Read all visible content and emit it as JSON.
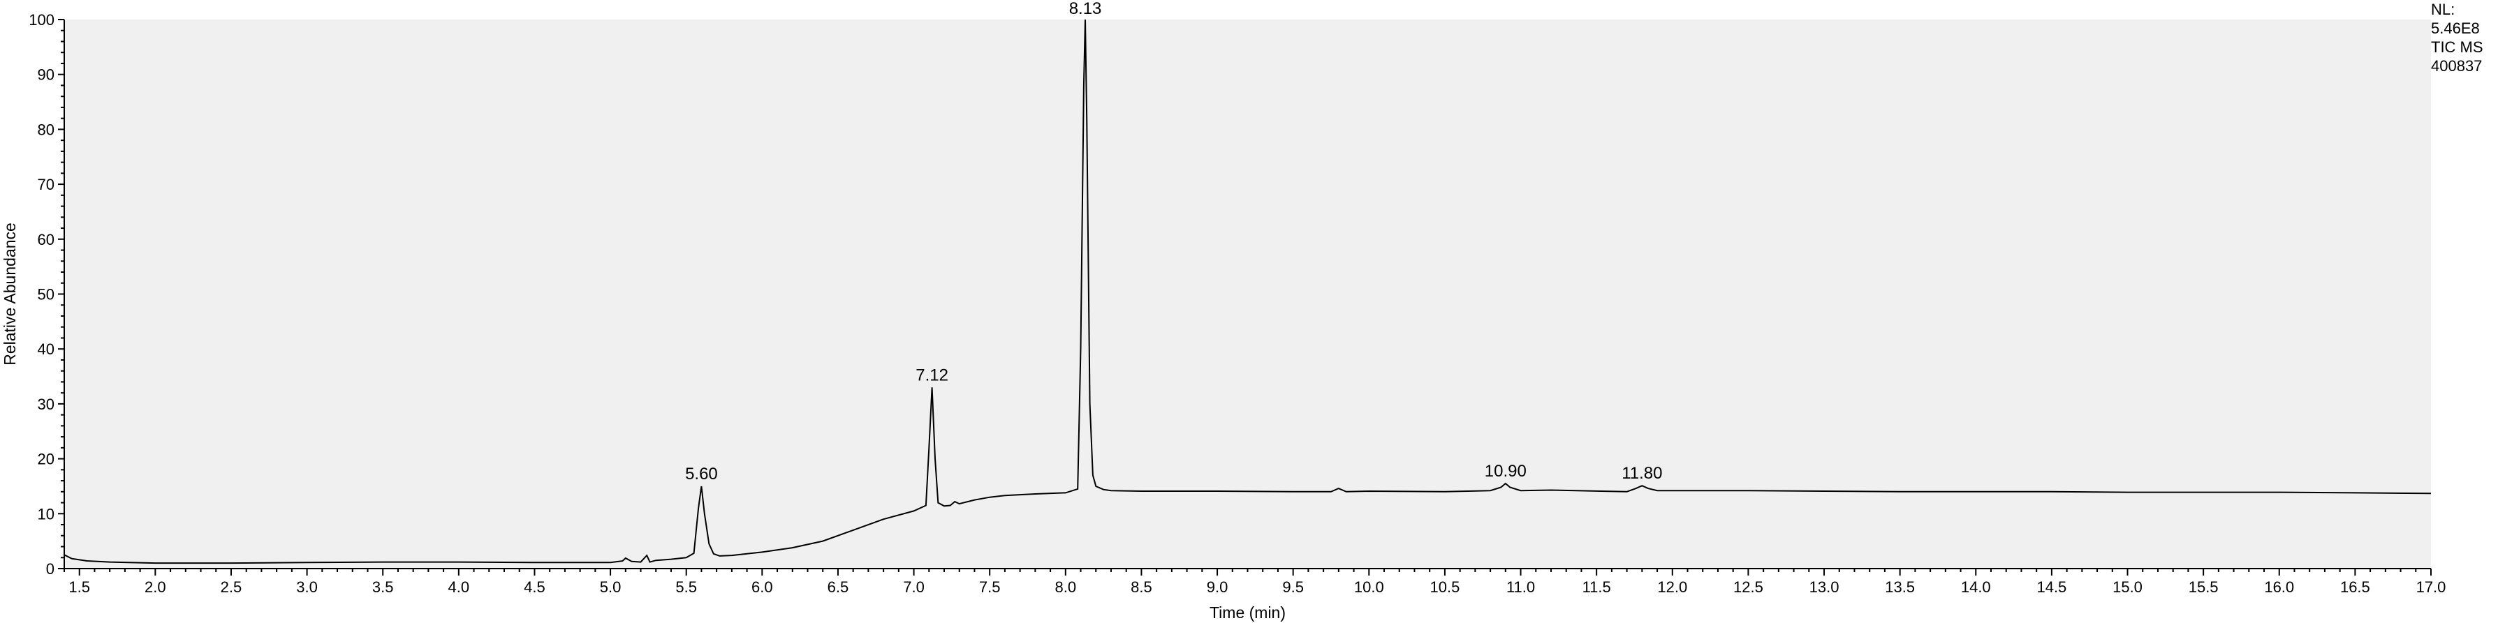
{
  "chart_data": {
    "type": "line",
    "xlabel": "Time (min)",
    "ylabel": "Relative Abundance",
    "xlim": [
      1.4,
      17.0
    ],
    "ylim": [
      0,
      100
    ],
    "x_ticks": [
      "1.5",
      "2.0",
      "2.5",
      "3.0",
      "3.5",
      "4.0",
      "4.5",
      "5.0",
      "5.5",
      "6.0",
      "6.5",
      "7.0",
      "7.5",
      "8.0",
      "8.5",
      "9.0",
      "9.5",
      "10.0",
      "10.5",
      "11.0",
      "11.5",
      "12.0",
      "12.5",
      "13.0",
      "13.5",
      "14.0",
      "14.5",
      "15.0",
      "15.5",
      "16.0",
      "16.5",
      "17.0"
    ],
    "y_ticks": [
      "0",
      "10",
      "20",
      "30",
      "40",
      "50",
      "60",
      "70",
      "80",
      "90",
      "100"
    ],
    "grid": false,
    "plot_background": "#f0f0f0",
    "line_color": "#000000",
    "series": [
      {
        "x": [
          1.4,
          1.45,
          1.55,
          1.7,
          2.0,
          2.5,
          3.0,
          3.5,
          4.0,
          4.5,
          5.0,
          5.08,
          5.1,
          5.14,
          5.2,
          5.24,
          5.26,
          5.3,
          5.4,
          5.5,
          5.55,
          5.58,
          5.6,
          5.62,
          5.65,
          5.68,
          5.72,
          5.8,
          6.0,
          6.2,
          6.4,
          6.6,
          6.8,
          7.0,
          7.08,
          7.1,
          7.12,
          7.14,
          7.16,
          7.2,
          7.24,
          7.27,
          7.3,
          7.4,
          7.5,
          7.6,
          7.8,
          8.0,
          8.08,
          8.1,
          8.12,
          8.13,
          8.14,
          8.16,
          8.18,
          8.2,
          8.25,
          8.3,
          8.5,
          9.0,
          9.5,
          9.75,
          9.8,
          9.85,
          10.0,
          10.5,
          10.8,
          10.87,
          10.9,
          10.93,
          11.0,
          11.2,
          11.7,
          11.76,
          11.8,
          11.84,
          11.9,
          12.0,
          12.5,
          13.0,
          13.5,
          14.0,
          14.5,
          15.0,
          15.5,
          16.0,
          16.5,
          17.0
        ],
        "y": [
          2.5,
          1.8,
          1.4,
          1.2,
          1.0,
          1.0,
          1.1,
          1.2,
          1.2,
          1.1,
          1.1,
          1.4,
          1.9,
          1.3,
          1.2,
          2.4,
          1.2,
          1.5,
          1.7,
          2.0,
          2.8,
          11.0,
          15.0,
          10.0,
          4.5,
          2.7,
          2.3,
          2.4,
          3.0,
          3.8,
          5.0,
          7.0,
          9.0,
          10.5,
          11.5,
          22.0,
          33.0,
          20.0,
          12.0,
          11.4,
          11.5,
          12.2,
          11.8,
          12.5,
          13.0,
          13.3,
          13.6,
          13.8,
          14.5,
          40.0,
          88.0,
          100.0,
          82.0,
          30.0,
          17.0,
          15.0,
          14.4,
          14.2,
          14.1,
          14.1,
          14.0,
          14.0,
          14.6,
          14.0,
          14.1,
          14.0,
          14.2,
          14.8,
          15.5,
          14.8,
          14.2,
          14.3,
          14.0,
          14.6,
          15.1,
          14.6,
          14.2,
          14.2,
          14.2,
          14.1,
          14.0,
          14.0,
          14.0,
          13.9,
          13.9,
          13.9,
          13.8,
          13.7
        ]
      }
    ],
    "annotations": [
      {
        "x": 5.6,
        "y": 15.0,
        "text": "5.60"
      },
      {
        "x": 7.12,
        "y": 33.0,
        "text": "7.12"
      },
      {
        "x": 8.13,
        "y": 100.0,
        "text": "8.13"
      },
      {
        "x": 10.9,
        "y": 15.5,
        "text": "10.90"
      },
      {
        "x": 11.8,
        "y": 15.1,
        "text": "11.80"
      }
    ]
  },
  "info_panel": {
    "lines": [
      "NL:",
      "5.46E8",
      "TIC  MS",
      "400837"
    ]
  }
}
